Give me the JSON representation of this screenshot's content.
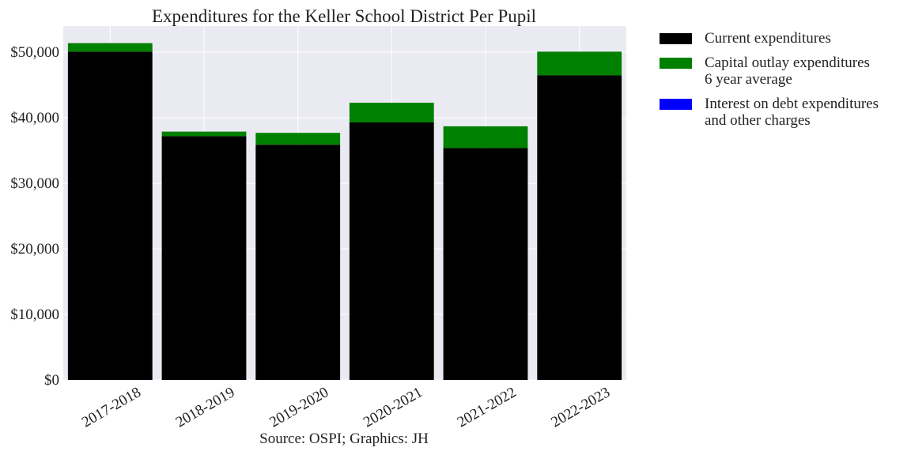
{
  "chart_data": {
    "type": "bar",
    "stacked": true,
    "title": "Expenditures for the Keller School District Per Pupil",
    "xlabel": "Source: OSPI; Graphics: JH",
    "ylabel": "",
    "categories": [
      "2017-2018",
      "2018-2019",
      "2019-2020",
      "2020-2021",
      "2021-2022",
      "2022-2023"
    ],
    "series": [
      {
        "name": "Current expenditures",
        "color": "#000000",
        "values": [
          50100,
          37200,
          35900,
          39300,
          35400,
          46500
        ]
      },
      {
        "name": "Capital outlay expenditures\n6 year average",
        "color": "#008000",
        "values": [
          1300,
          700,
          1800,
          3000,
          3300,
          3600
        ]
      },
      {
        "name": "Interest on debt expenditures\nand other charges",
        "color": "#0000ff",
        "values": [
          0,
          0,
          0,
          0,
          0,
          0
        ]
      }
    ],
    "ylim": [
      0,
      54000
    ],
    "yticks": [
      0,
      10000,
      20000,
      30000,
      40000,
      50000
    ],
    "ytick_labels": [
      "$0",
      "$10,000",
      "$20,000",
      "$30,000",
      "$40,000",
      "$50,000"
    ],
    "grid": true,
    "legend_position": "outside-right",
    "background_color": "#eaeaf2"
  }
}
